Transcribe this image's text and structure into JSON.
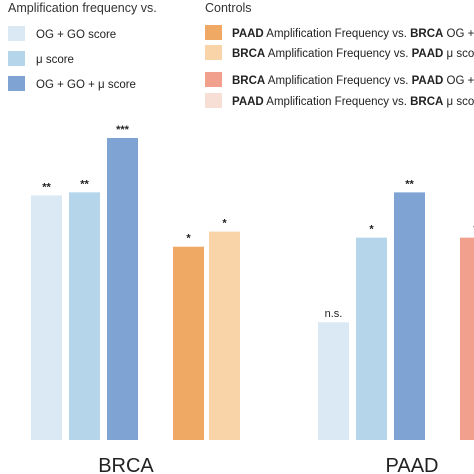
{
  "legend_left": {
    "title": "Amplification frequency vs.",
    "items": [
      {
        "label": "OG + GO score",
        "color": "#dbe9f4"
      },
      {
        "label": "μ score",
        "color": "#b4d5ea"
      },
      {
        "label": "OG + GO + μ score",
        "color": "#7fa3d2"
      }
    ]
  },
  "legend_right": {
    "title": "Controls",
    "items": [
      {
        "parts": [
          {
            "t": "PAAD",
            "b": true
          },
          {
            "t": " Amplification Frequency vs. ",
            "b": false
          },
          {
            "t": "BRCA",
            "b": true
          },
          {
            "t": " OG + G",
            "b": false
          }
        ],
        "color": "#f0a865"
      },
      {
        "parts": [
          {
            "t": "BRCA",
            "b": true
          },
          {
            "t": " Amplification Frequency vs. ",
            "b": false
          },
          {
            "t": "PAAD",
            "b": true
          },
          {
            "t": " μ score",
            "b": false
          }
        ],
        "color": "#f9d4a8"
      },
      {
        "parts": [
          {
            "t": "BRCA",
            "b": true
          },
          {
            "t": " Amplification Frequency vs. ",
            "b": false
          },
          {
            "t": "PAAD",
            "b": true
          },
          {
            "t": " OG + G",
            "b": false
          }
        ],
        "color": "#f0a08d"
      },
      {
        "parts": [
          {
            "t": "PAAD",
            "b": true
          },
          {
            "t": " Amplification Frequency vs. ",
            "b": false
          },
          {
            "t": "BRCA",
            "b": true
          },
          {
            "t": " μ score",
            "b": false
          }
        ],
        "color": "#f7dfd6"
      }
    ]
  },
  "chart_data": {
    "type": "bar",
    "ylim": [
      0,
      1
    ],
    "categories": [
      "BRCA",
      "PAAD"
    ],
    "bars": [
      {
        "group": "BRCA",
        "value": 0.81,
        "label": "**",
        "color": "#dbe9f4"
      },
      {
        "group": "BRCA",
        "value": 0.82,
        "label": "**",
        "color": "#b4d5ea"
      },
      {
        "group": "BRCA",
        "value": 1.0,
        "label": "***",
        "color": "#7fa3d2"
      },
      {
        "group": "BRCA",
        "value": 0.64,
        "label": "*",
        "color": "#f0a865"
      },
      {
        "group": "BRCA",
        "value": 0.69,
        "label": "*",
        "color": "#f9d4a8"
      },
      {
        "group": "PAAD",
        "value": 0.39,
        "label": "n.s.",
        "color": "#dbe9f4"
      },
      {
        "group": "PAAD",
        "value": 0.67,
        "label": "*",
        "color": "#b4d5ea"
      },
      {
        "group": "PAAD",
        "value": 0.82,
        "label": "**",
        "color": "#7fa3d2"
      },
      {
        "group": "PAAD",
        "value": 0.67,
        "label": "*",
        "color": "#f0a08d"
      }
    ]
  }
}
